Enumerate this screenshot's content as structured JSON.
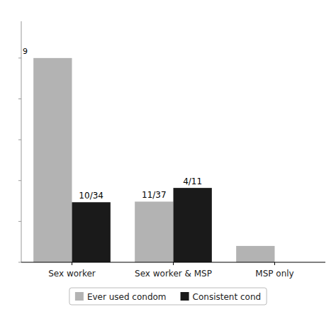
{
  "chart_data": {
    "type": "bar",
    "categories": [
      "Sex worker",
      "Sex worker & MSP",
      "MSP only"
    ],
    "series": [
      {
        "name": "Ever used condom",
        "color": "#b3b3b3",
        "values": [
          1.0,
          0.297,
          0.08
        ],
        "value_labels": [
          null,
          "11/37",
          null
        ]
      },
      {
        "name": "Consistent cond",
        "color": "#1a1a1a",
        "values": [
          0.294,
          0.364,
          0.0
        ],
        "value_labels": [
          "10/34",
          "4/11",
          null
        ]
      }
    ],
    "ylim": [
      0,
      1.18
    ],
    "yticks": [
      0,
      0.2,
      0.4,
      0.6,
      0.8,
      1.0
    ],
    "tick_labels": "x",
    "legend": "bottom",
    "grid": false,
    "annotations": [
      {
        "text": "9",
        "y": 1.02
      }
    ]
  }
}
